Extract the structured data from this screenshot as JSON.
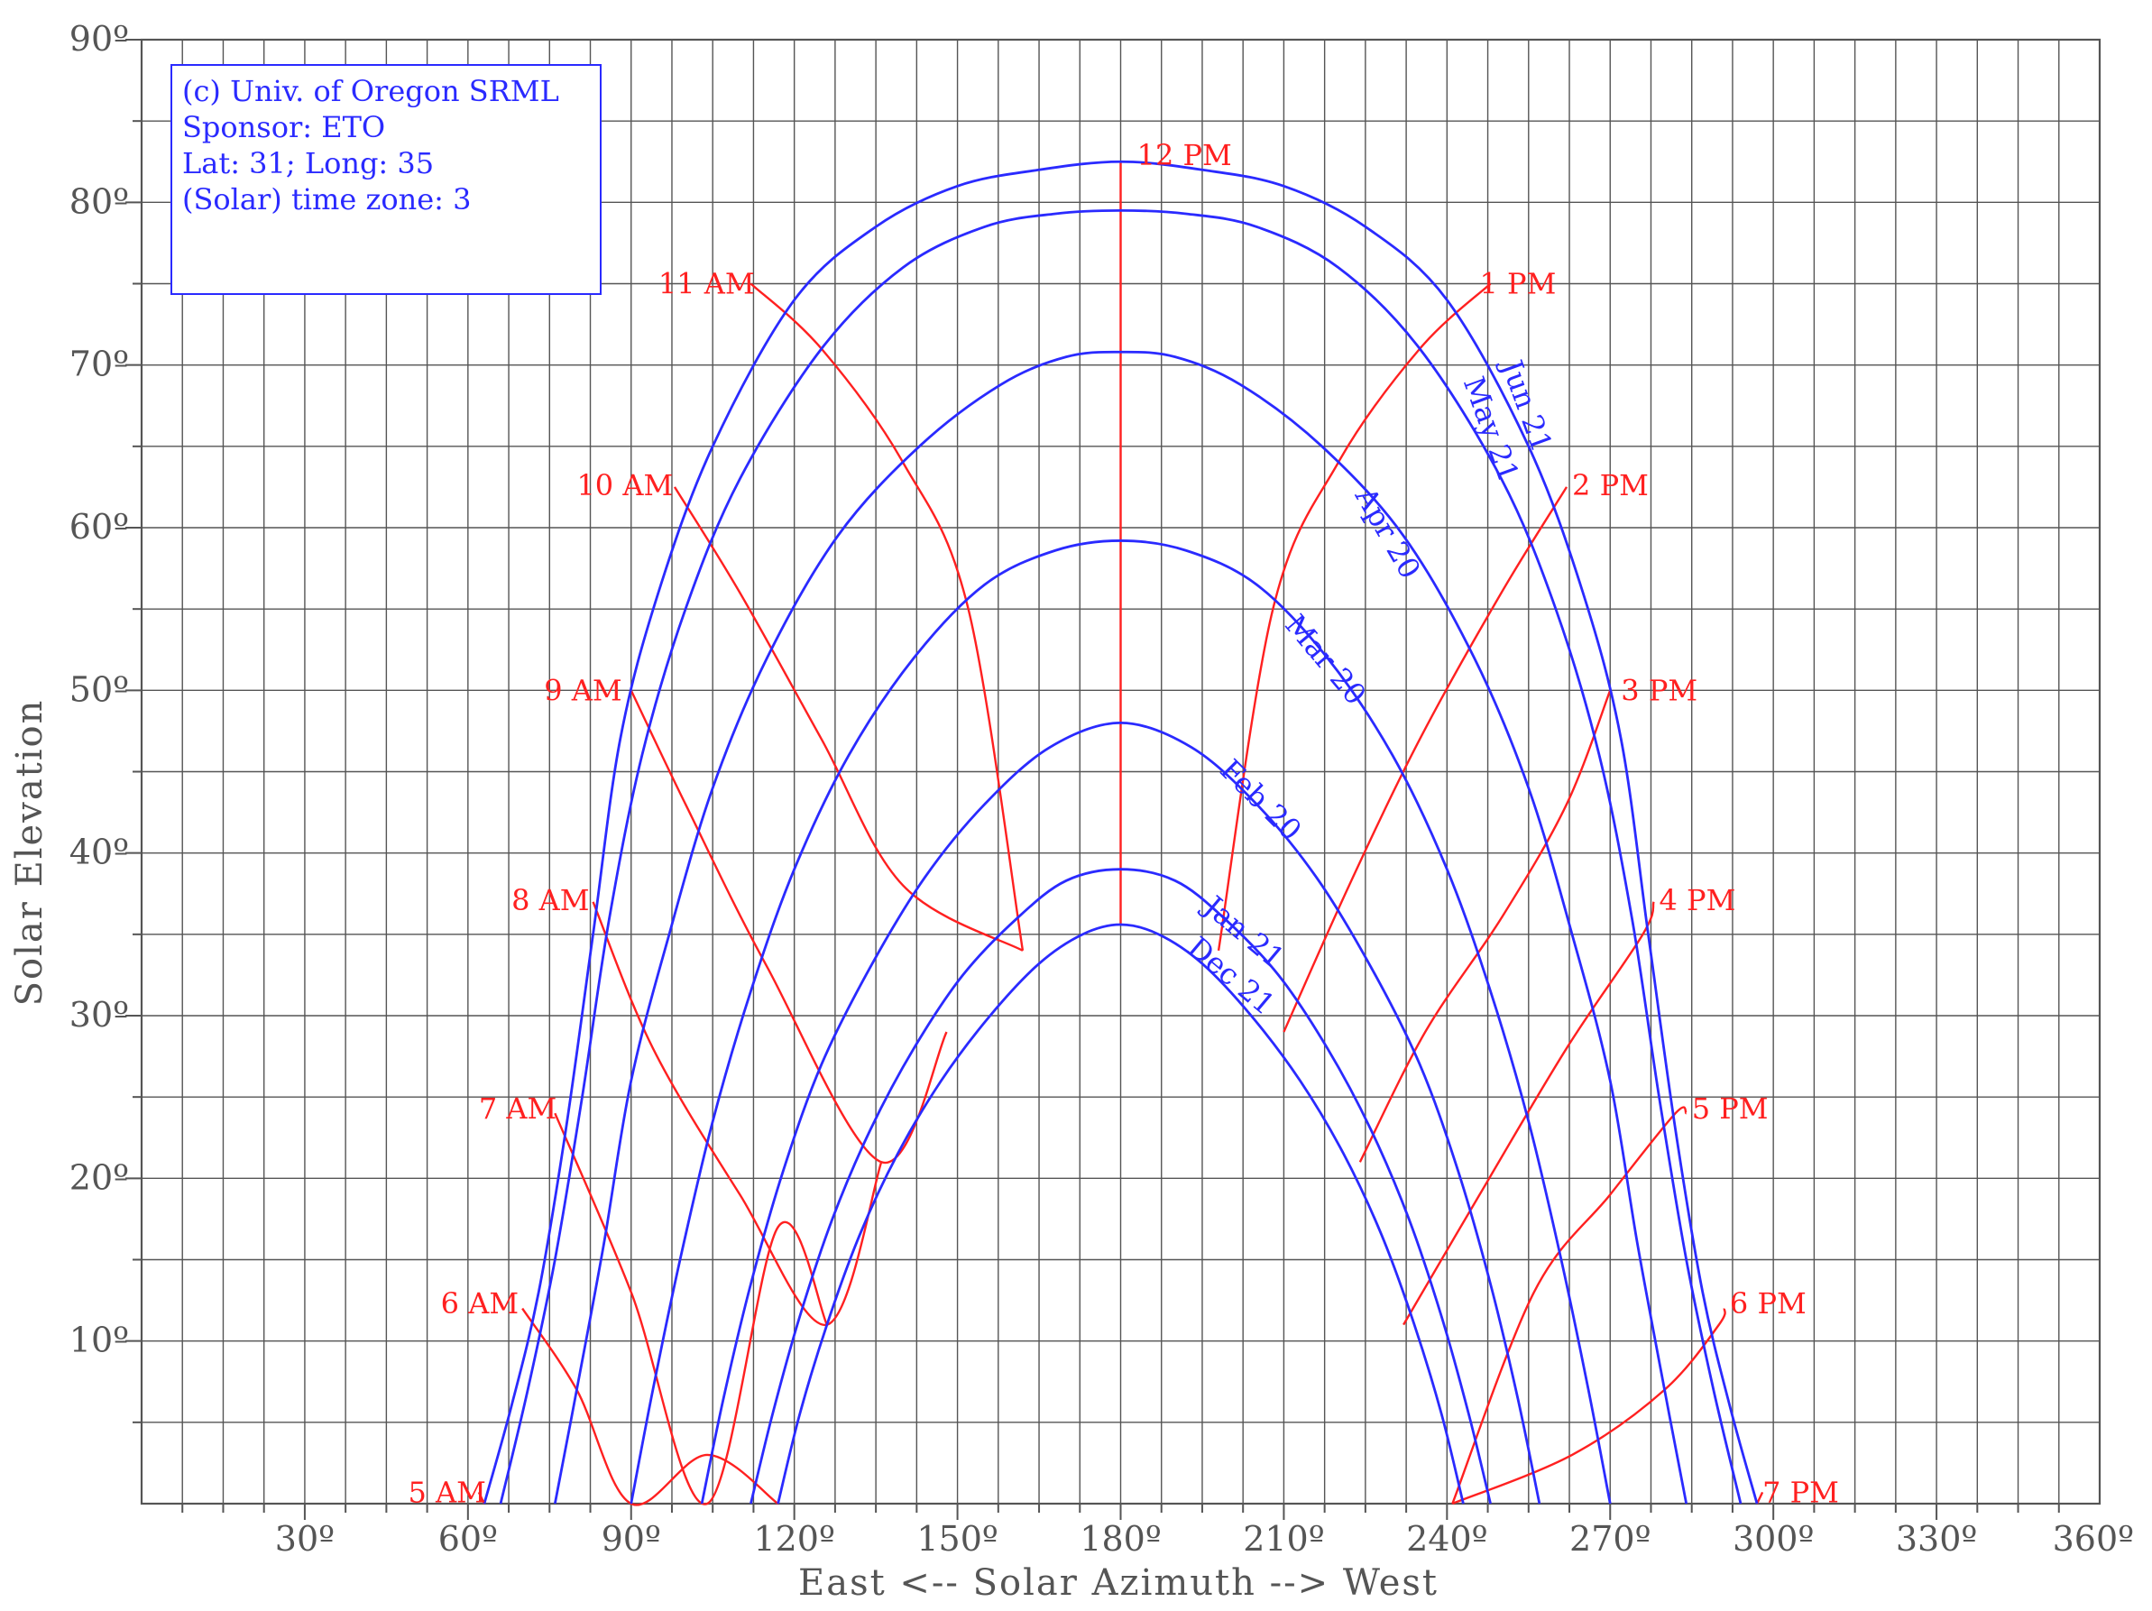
{
  "chart_data": {
    "type": "line",
    "title": "",
    "xlabel": "East <-- Solar Azimuth --> West",
    "ylabel": "Solar Elevation",
    "xlim": [
      0,
      360
    ],
    "ylim": [
      0,
      90
    ],
    "grid": true,
    "x_ticks": [
      "30º",
      "60º",
      "90º",
      "120º",
      "150º",
      "180º",
      "210º",
      "240º",
      "270º",
      "300º",
      "330º",
      "360º"
    ],
    "y_ticks": [
      "10º",
      "20º",
      "30º",
      "40º",
      "50º",
      "60º",
      "70º",
      "80º",
      "90º"
    ],
    "info_box": [
      "(c) Univ. of Oregon SRML",
      "Sponsor: ETO",
      "Lat: 31; Long: 35",
      "(Solar) time zone: 3"
    ],
    "colors": {
      "date_lines": "#2a2aff",
      "hour_lines": "#ff2020",
      "grid": "#555555"
    },
    "date_series": [
      {
        "name": "Jun 21",
        "x": [
          63,
          68,
          73,
          78,
          83,
          88,
          95,
          105,
          120,
          135,
          150,
          165,
          180,
          195,
          210,
          225,
          240,
          255,
          265,
          272,
          277,
          282,
          287,
          292,
          297
        ],
        "y": [
          0,
          6,
          13,
          23,
          35,
          47,
          56,
          65,
          74,
          78.5,
          81,
          82,
          82.5,
          82,
          81,
          78.5,
          74,
          65,
          56,
          47,
          35,
          23,
          13,
          6,
          0
        ]
      },
      {
        "name": "May 21",
        "x": [
          66,
          71,
          76,
          81,
          86,
          92,
          100,
          110,
          125,
          140,
          155,
          168,
          180,
          192,
          205,
          220,
          235,
          250,
          260,
          268,
          274,
          279,
          284,
          289,
          294
        ],
        "y": [
          0,
          7,
          15,
          25,
          36,
          46,
          55,
          63,
          71,
          76,
          78.5,
          79.3,
          79.5,
          79.3,
          78.5,
          76,
          71,
          63,
          55,
          46,
          36,
          25,
          15,
          7,
          0
        ]
      },
      {
        "name": "Apr 20",
        "x": [
          76,
          80,
          85,
          90,
          97,
          105,
          115,
          128,
          143,
          158,
          170,
          180,
          190,
          202,
          217,
          232,
          245,
          255,
          263,
          270,
          275,
          280,
          284
        ],
        "y": [
          0,
          7,
          16,
          26,
          35,
          44,
          52,
          59.5,
          65,
          68.8,
          70.5,
          70.8,
          70.5,
          68.8,
          65,
          59.5,
          52,
          44,
          35,
          26,
          16,
          7,
          0
        ]
      },
      {
        "name": "Mar 20",
        "x": [
          90,
          94,
          99,
          105,
          112,
          120,
          130,
          142,
          155,
          168,
          180,
          192,
          205,
          218,
          230,
          240,
          248,
          255,
          261,
          266,
          270
        ],
        "y": [
          0,
          7,
          15,
          23.5,
          31.5,
          39,
          46,
          52,
          56.5,
          58.6,
          59.2,
          58.6,
          56.5,
          52,
          46,
          39,
          31.5,
          23.5,
          15,
          7,
          0
        ]
      },
      {
        "name": "Feb 20",
        "x": [
          103,
          107,
          112,
          118,
          125,
          134,
          144,
          155,
          167,
          180,
          193,
          205,
          216,
          226,
          235,
          242,
          248,
          253,
          257
        ],
        "y": [
          0,
          6.5,
          13.5,
          20.5,
          27,
          33,
          38.5,
          43,
          46.5,
          48,
          46.5,
          43,
          38.5,
          33,
          27,
          20.5,
          13.5,
          6.5,
          0
        ]
      },
      {
        "name": "Jan 21",
        "x": [
          112,
          116,
          121,
          127,
          134,
          142,
          151,
          161,
          170,
          180,
          190,
          199,
          209,
          218,
          226,
          233,
          239,
          244,
          248
        ],
        "y": [
          0,
          5.5,
          11.5,
          17.5,
          23,
          28,
          32.5,
          36,
          38.3,
          39,
          38.3,
          36,
          32.5,
          28,
          23,
          17.5,
          11.5,
          5.5,
          0
        ]
      },
      {
        "name": "Dec 21",
        "x": [
          117,
          121,
          126,
          132,
          139,
          147,
          156,
          165,
          173,
          180,
          187,
          195,
          204,
          213,
          221,
          228,
          234,
          239,
          243
        ],
        "y": [
          0,
          5.5,
          11,
          16.5,
          21.5,
          26,
          30,
          33.2,
          35,
          35.6,
          35,
          33.2,
          30,
          26,
          21.5,
          16.5,
          11,
          5.5,
          0
        ]
      }
    ],
    "hour_series": [
      {
        "name": "5 AM",
        "x": [
          62,
          63
        ],
        "y": [
          0.7,
          0
        ]
      },
      {
        "name": "6 AM",
        "x": [
          70,
          80,
          90,
          104,
          117
        ],
        "y": [
          12,
          7,
          0,
          3,
          0
        ]
      },
      {
        "name": "7 AM",
        "x": [
          76,
          90,
          104,
          117,
          126
        ],
        "y": [
          24,
          13,
          0,
          17,
          11
        ]
      },
      {
        "name": "8 AM",
        "x": [
          83,
          94,
          110,
          126,
          136
        ],
        "y": [
          37,
          28,
          19,
          11,
          21
        ]
      },
      {
        "name": "9 AM",
        "x": [
          90,
          100,
          115,
          136,
          148
        ],
        "y": [
          50,
          43,
          33,
          21,
          29
        ]
      },
      {
        "name": "10 AM",
        "x": [
          98,
          110,
          125,
          140,
          162
        ],
        "y": [
          62.5,
          56,
          47,
          38,
          34
        ]
      },
      {
        "name": "11 AM",
        "x": [
          112,
          125,
          140,
          152,
          162
        ],
        "y": [
          75,
          71,
          64,
          55,
          34
        ]
      },
      {
        "name": "12 PM",
        "x": [
          180,
          180
        ],
        "y": [
          82.5,
          35.6
        ]
      },
      {
        "name": "1 PM",
        "x": [
          198,
          208,
          220,
          235,
          248
        ],
        "y": [
          34,
          55,
          64,
          71,
          75
        ]
      },
      {
        "name": "2 PM",
        "x": [
          210,
          222,
          235,
          250,
          262
        ],
        "y": [
          29,
          38,
          47,
          56,
          62.5
        ]
      },
      {
        "name": "3 PM",
        "x": [
          224,
          236,
          250,
          262,
          270
        ],
        "y": [
          21,
          29,
          36,
          43,
          50
        ]
      },
      {
        "name": "4 PM",
        "x": [
          232,
          246,
          262,
          276,
          278
        ],
        "y": [
          11,
          19,
          28,
          35,
          37
        ]
      },
      {
        "name": "5 PM",
        "x": [
          241,
          256,
          270,
          282,
          284
        ],
        "y": [
          0,
          13,
          19,
          24,
          24
        ]
      },
      {
        "name": "6 PM",
        "x": [
          241,
          263,
          280,
          290,
          291
        ],
        "y": [
          0,
          3,
          7,
          11,
          12
        ]
      },
      {
        "name": "7 PM",
        "x": [
          297,
          298
        ],
        "y": [
          0,
          0.7
        ]
      }
    ],
    "hour_labels": [
      {
        "text": "5 AM",
        "x": 49,
        "y": 0.7
      },
      {
        "text": "6 AM",
        "x": 55,
        "y": 12.3
      },
      {
        "text": "7 AM",
        "x": 62,
        "y": 24.3
      },
      {
        "text": "8 AM",
        "x": 68,
        "y": 37.1
      },
      {
        "text": "9 AM",
        "x": 74,
        "y": 50
      },
      {
        "text": "10 AM",
        "x": 80,
        "y": 62.6
      },
      {
        "text": "11 AM",
        "x": 95,
        "y": 75
      },
      {
        "text": "12 PM",
        "x": 183,
        "y": 82.9
      },
      {
        "text": "1 PM",
        "x": 246,
        "y": 75
      },
      {
        "text": "2 PM",
        "x": 263,
        "y": 62.6
      },
      {
        "text": "3 PM",
        "x": 272,
        "y": 50
      },
      {
        "text": "4 PM",
        "x": 279,
        "y": 37.1
      },
      {
        "text": "5 PM",
        "x": 285,
        "y": 24.3
      },
      {
        "text": "6 PM",
        "x": 292,
        "y": 12.3
      },
      {
        "text": "7 PM",
        "x": 298,
        "y": 0.7
      }
    ],
    "date_labels": [
      {
        "text": "Jun 21",
        "x": 250,
        "y": 70,
        "angle": 70
      },
      {
        "text": "May 21",
        "x": 243,
        "y": 69,
        "angle": 70
      },
      {
        "text": "Apr 20",
        "x": 223,
        "y": 62,
        "angle": 60
      },
      {
        "text": "Mar 20",
        "x": 210,
        "y": 54,
        "angle": 50
      },
      {
        "text": "Feb 20",
        "x": 198,
        "y": 45,
        "angle": 45
      },
      {
        "text": "Jan 21",
        "x": 195,
        "y": 36.5,
        "angle": 40
      },
      {
        "text": "Dec 21",
        "x": 192,
        "y": 34,
        "angle": 40
      }
    ]
  }
}
